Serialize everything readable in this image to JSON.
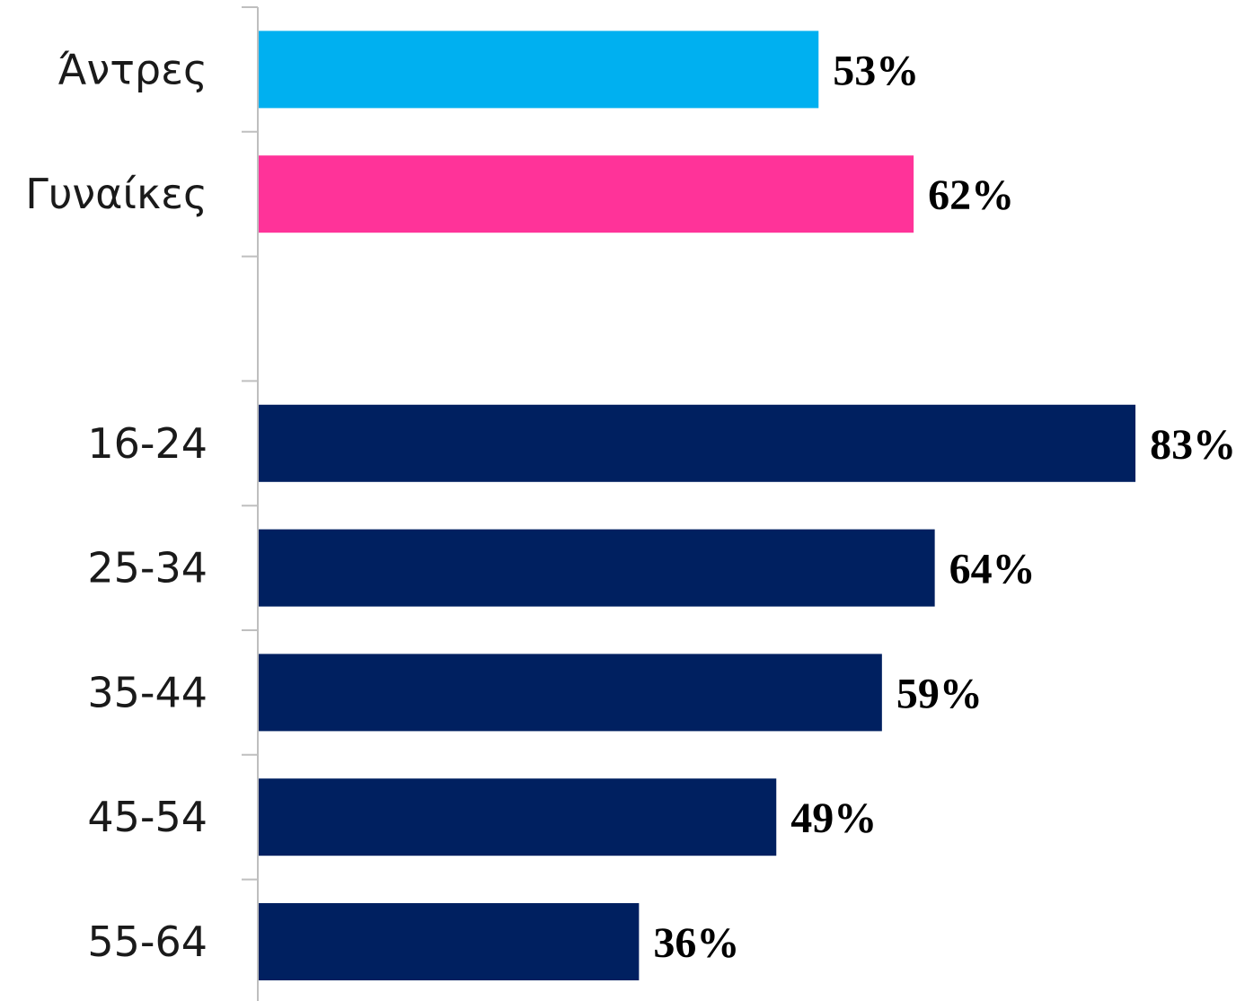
{
  "chart_data": {
    "type": "bar",
    "orientation": "horizontal",
    "categories": [
      "Άντρες",
      "Γυναίκες",
      "",
      "16-24",
      "25-34",
      "35-44",
      "45-54",
      "55-64"
    ],
    "values": [
      53,
      62,
      null,
      83,
      64,
      59,
      49,
      36
    ],
    "value_labels": [
      "53%",
      "62%",
      "",
      "83%",
      "64%",
      "59%",
      "49%",
      "36%"
    ],
    "bar_colors": [
      "#00B0F0",
      "#FF3399",
      "",
      "#002060",
      "#002060",
      "#002060",
      "#002060",
      "#002060"
    ],
    "unit": "%",
    "xlim": [
      0,
      100
    ],
    "grid": false,
    "legend": "none",
    "title": "",
    "xlabel": "",
    "ylabel": ""
  }
}
